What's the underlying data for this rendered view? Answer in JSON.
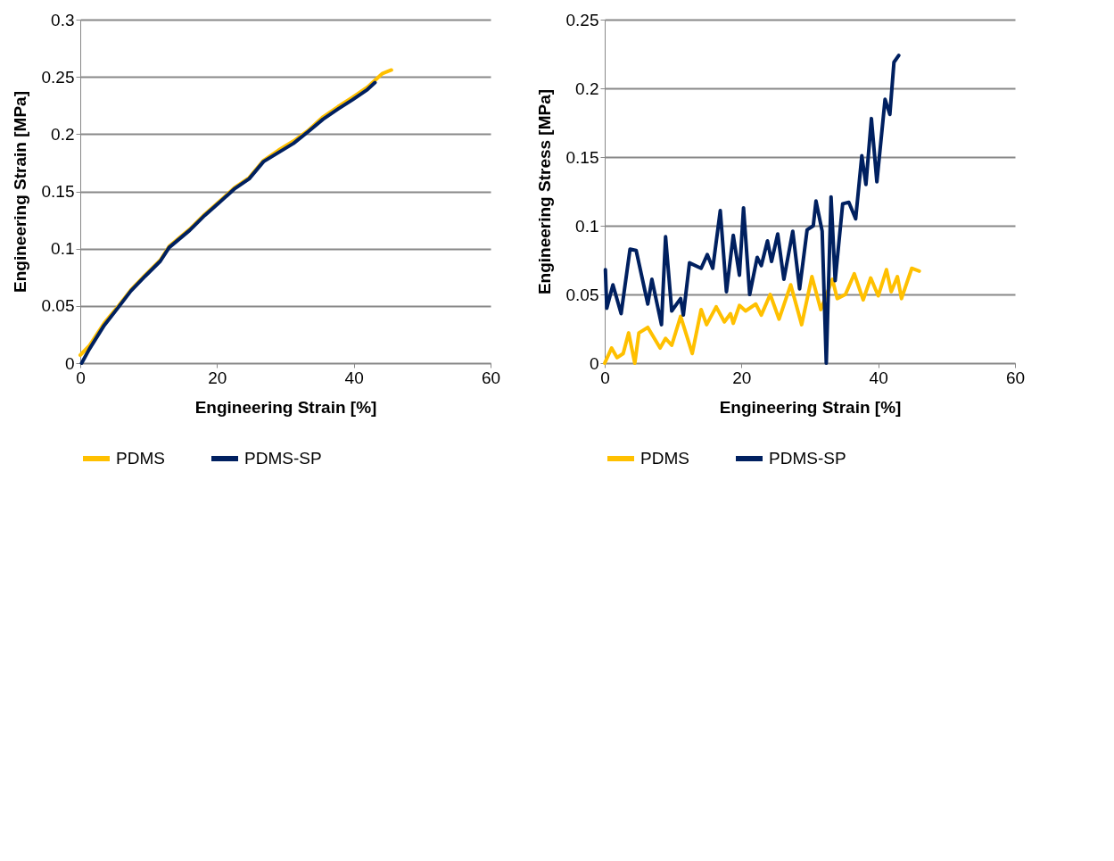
{
  "chart_data": [
    {
      "type": "line",
      "xlabel": "Engineering Strain  [%]",
      "ylabel": "Engineering Strain  [MPa]",
      "xlim": [
        0,
        60
      ],
      "xticks": [
        0,
        20,
        40,
        60
      ],
      "ylim": [
        0,
        0.3
      ],
      "yticks": [
        0,
        0.05,
        0.1,
        0.15,
        0.2,
        0.25,
        0.3
      ],
      "grid": "y",
      "legend": "bottom",
      "series": [
        {
          "name": "PDMS",
          "color": "#ffc000",
          "x": [
            0,
            1.3,
            3.5,
            5.6,
            7.4,
            9.5,
            11.7,
            13,
            16,
            18.2,
            20.3,
            22.5,
            24.7,
            26.8,
            29,
            31.2,
            33.3,
            35.5,
            37.7,
            39.8,
            42,
            43.1,
            44.2,
            45.5
          ],
          "values": [
            0.007,
            0.015,
            0.035,
            0.05,
            0.064,
            0.077,
            0.09,
            0.102,
            0.117,
            0.13,
            0.141,
            0.153,
            0.162,
            0.177,
            0.186,
            0.194,
            0.203,
            0.215,
            0.224,
            0.232,
            0.241,
            0.247,
            0.253,
            0.256
          ]
        },
        {
          "name": "PDMS-SP",
          "color": "#002060",
          "x": [
            0.2,
            1.3,
            3.5,
            5.6,
            7.4,
            9.5,
            11.7,
            13,
            16,
            18.2,
            20.3,
            22.5,
            24.7,
            26.8,
            29,
            31.2,
            33.3,
            35.5,
            37.7,
            39.8,
            42,
            43.1
          ],
          "values": [
            0,
            0.012,
            0.033,
            0.049,
            0.063,
            0.076,
            0.089,
            0.101,
            0.116,
            0.129,
            0.14,
            0.152,
            0.161,
            0.176,
            0.184,
            0.192,
            0.202,
            0.213,
            0.222,
            0.23,
            0.239,
            0.245
          ]
        }
      ]
    },
    {
      "type": "line",
      "xlabel": "Engineering Strain  [%]",
      "ylabel": "Engineering Stress  [MPa]",
      "xlim": [
        0,
        60
      ],
      "xticks": [
        0,
        20,
        40,
        60
      ],
      "ylim": [
        0,
        0.25
      ],
      "yticks": [
        0,
        0.05,
        0.1,
        0.15,
        0.2,
        0.25
      ],
      "grid": "y",
      "legend": "bottom",
      "series": [
        {
          "name": "PDMS",
          "color": "#ffc000",
          "x": [
            0,
            1,
            1.8,
            2.7,
            3.5,
            4.4,
            5,
            6.3,
            8.1,
            8.9,
            9.8,
            11.1,
            12.8,
            14.1,
            14.9,
            16.3,
            17.5,
            18.4,
            18.8,
            19.7,
            20.6,
            22.1,
            22.9,
            24.2,
            25.5,
            27.2,
            28.8,
            30.3,
            31.6,
            33.3,
            34,
            35.2,
            36.5,
            37.8,
            38.9,
            40,
            41.2,
            41.9,
            42.8,
            43.4,
            44.9,
            46
          ],
          "values": [
            0,
            0.011,
            0.004,
            0.007,
            0.022,
            0,
            0.022,
            0.026,
            0.011,
            0.018,
            0.013,
            0.034,
            0.007,
            0.039,
            0.028,
            0.041,
            0.03,
            0.036,
            0.029,
            0.042,
            0.038,
            0.043,
            0.035,
            0.05,
            0.032,
            0.057,
            0.028,
            0.063,
            0.039,
            0.061,
            0.047,
            0.05,
            0.065,
            0.046,
            0.062,
            0.049,
            0.068,
            0.052,
            0.063,
            0.047,
            0.069,
            0.067
          ]
        },
        {
          "name": "PDMS-SP",
          "color": "#002060",
          "x": [
            0.1,
            0.3,
            1.2,
            2.4,
            3.7,
            4.6,
            6.3,
            6.9,
            8.3,
            8.9,
            9.8,
            11.1,
            11.5,
            12.4,
            14.1,
            15,
            15.8,
            16.9,
            17.8,
            18.8,
            19.7,
            20.3,
            21.2,
            22.3,
            22.9,
            23.8,
            24.4,
            25.3,
            26.2,
            27.5,
            28.5,
            29.6,
            30.5,
            30.9,
            31.8,
            32.4,
            33.1,
            33.7,
            34.8,
            35.7,
            36.7,
            37.6,
            38.2,
            39,
            39.8,
            41,
            41.7,
            42.3,
            43
          ],
          "values": [
            0.068,
            0.04,
            0.057,
            0.036,
            0.083,
            0.082,
            0.043,
            0.061,
            0.028,
            0.092,
            0.038,
            0.047,
            0.035,
            0.073,
            0.069,
            0.079,
            0.069,
            0.111,
            0.052,
            0.093,
            0.064,
            0.113,
            0.05,
            0.077,
            0.071,
            0.089,
            0.074,
            0.094,
            0.061,
            0.096,
            0.054,
            0.097,
            0.1,
            0.118,
            0.096,
            0,
            0.121,
            0.06,
            0.116,
            0.117,
            0.105,
            0.151,
            0.13,
            0.178,
            0.132,
            0.192,
            0.181,
            0.219,
            0.224
          ]
        }
      ]
    }
  ]
}
